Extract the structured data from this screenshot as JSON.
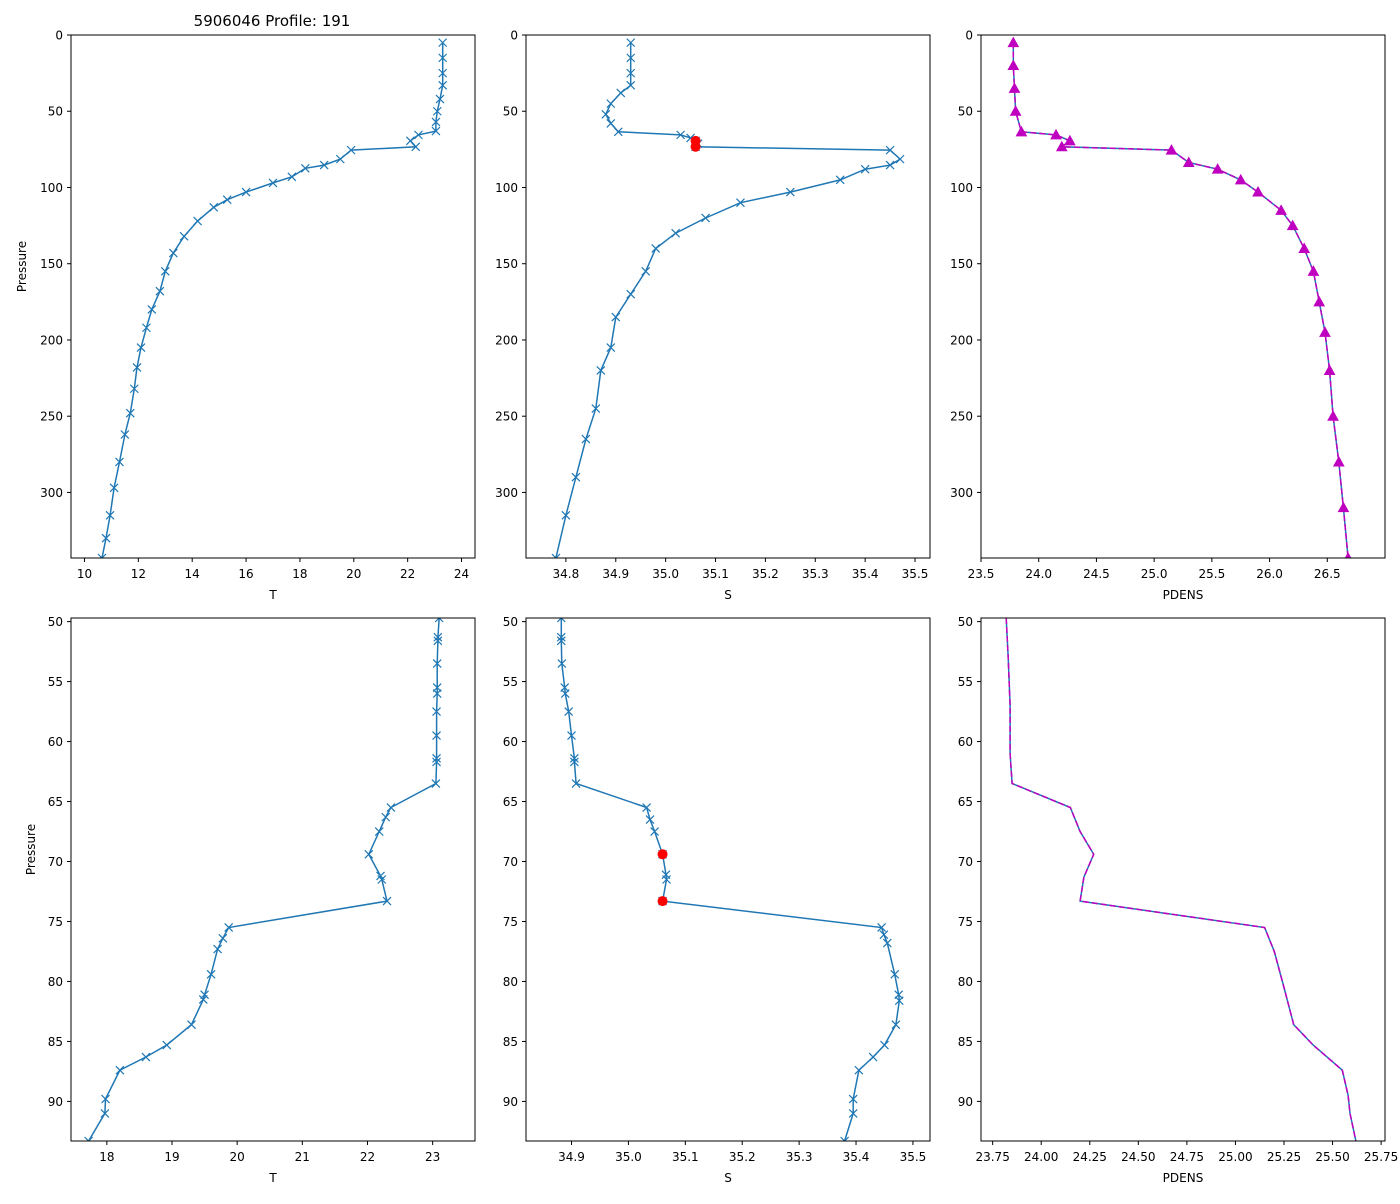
{
  "figure_title": "5906046 Profile: 191",
  "colors": {
    "line": "#1f77b4",
    "flag": "#ff0000",
    "density": "#bf00bf"
  },
  "chart_data": [
    {
      "type": "line",
      "panel": "top-left",
      "title": "5906046 Profile: 191",
      "xlabel": "T",
      "ylabel": "Pressure",
      "xlim": [
        9.5,
        24.5
      ],
      "ylim": [
        343,
        0
      ],
      "y_inverted": true,
      "xticks": [
        10,
        12,
        14,
        16,
        18,
        20,
        22,
        24
      ],
      "yticks": [
        0,
        50,
        100,
        150,
        200,
        250,
        300
      ],
      "marker": "x",
      "series": [
        {
          "name": "T",
          "points": [
            [
              23.3,
              5
            ],
            [
              23.3,
              15
            ],
            [
              23.3,
              25
            ],
            [
              23.3,
              33
            ],
            [
              23.2,
              42
            ],
            [
              23.1,
              50
            ],
            [
              23.05,
              57
            ],
            [
              23.05,
              63
            ],
            [
              22.4,
              65.5
            ],
            [
              22.1,
              69.4
            ],
            [
              22.3,
              73.3
            ],
            [
              19.9,
              75.5
            ],
            [
              19.5,
              81.4
            ],
            [
              18.9,
              85.3
            ],
            [
              18.2,
              87.4
            ],
            [
              17.7,
              93
            ],
            [
              17.0,
              97
            ],
            [
              16.0,
              103
            ],
            [
              15.3,
              108
            ],
            [
              14.8,
              113
            ],
            [
              14.2,
              122
            ],
            [
              13.7,
              132
            ],
            [
              13.3,
              143
            ],
            [
              13.0,
              155
            ],
            [
              12.8,
              168
            ],
            [
              12.5,
              180
            ],
            [
              12.3,
              192
            ],
            [
              12.1,
              205
            ],
            [
              11.95,
              218
            ],
            [
              11.85,
              232
            ],
            [
              11.7,
              248
            ],
            [
              11.5,
              262
            ],
            [
              11.3,
              280
            ],
            [
              11.1,
              297
            ],
            [
              10.95,
              315
            ],
            [
              10.8,
              330
            ],
            [
              10.65,
              343
            ]
          ]
        }
      ]
    },
    {
      "type": "line",
      "panel": "top-center",
      "xlabel": "S",
      "ylabel": "",
      "xlim": [
        34.72,
        35.53
      ],
      "ylim": [
        343,
        0
      ],
      "y_inverted": true,
      "xticks": [
        34.8,
        34.9,
        35.0,
        35.1,
        35.2,
        35.3,
        35.4,
        35.5
      ],
      "yticks": [
        0,
        50,
        100,
        150,
        200,
        250,
        300
      ],
      "marker": "x",
      "series": [
        {
          "name": "S",
          "points": [
            [
              34.93,
              5
            ],
            [
              34.93,
              15
            ],
            [
              34.93,
              25
            ],
            [
              34.93,
              33
            ],
            [
              34.91,
              38
            ],
            [
              34.89,
              45
            ],
            [
              34.88,
              52
            ],
            [
              34.89,
              58
            ],
            [
              34.905,
              63.5
            ],
            [
              35.03,
              65.5
            ],
            [
              35.05,
              67.5
            ],
            [
              35.06,
              69.4
            ],
            [
              35.065,
              71.3
            ],
            [
              35.06,
              73.3
            ],
            [
              35.45,
              75.5
            ],
            [
              35.47,
              81.4
            ],
            [
              35.45,
              85.3
            ],
            [
              35.4,
              88
            ],
            [
              35.35,
              95
            ],
            [
              35.25,
              103
            ],
            [
              35.15,
              110
            ],
            [
              35.08,
              120
            ],
            [
              35.02,
              130
            ],
            [
              34.98,
              140
            ],
            [
              34.96,
              155
            ],
            [
              34.93,
              170
            ],
            [
              34.9,
              185
            ],
            [
              34.89,
              205
            ],
            [
              34.87,
              220
            ],
            [
              34.86,
              245
            ],
            [
              34.84,
              265
            ],
            [
              34.82,
              290
            ],
            [
              34.8,
              315
            ],
            [
              34.78,
              343
            ]
          ]
        }
      ],
      "flagged_points": [
        [
          35.06,
          69.4
        ],
        [
          35.06,
          73.3
        ]
      ]
    },
    {
      "type": "line",
      "panel": "top-right",
      "xlabel": "PDENS",
      "ylabel": "",
      "xlim": [
        23.5,
        27.0
      ],
      "ylim": [
        343,
        0
      ],
      "y_inverted": true,
      "xticks": [
        23.5,
        24.0,
        24.5,
        25.0,
        25.5,
        26.0,
        26.5
      ],
      "yticks": [
        0,
        50,
        100,
        150,
        200,
        250,
        300
      ],
      "marker": "^",
      "series": [
        {
          "name": "PDENS",
          "points": [
            [
              23.78,
              5
            ],
            [
              23.78,
              20
            ],
            [
              23.79,
              35
            ],
            [
              23.8,
              50
            ],
            [
              23.85,
              63.5
            ],
            [
              24.15,
              65.5
            ],
            [
              24.27,
              69.4
            ],
            [
              24.2,
              73.3
            ],
            [
              25.15,
              75.5
            ],
            [
              25.3,
              83.6
            ],
            [
              25.55,
              88
            ],
            [
              25.75,
              95
            ],
            [
              25.9,
              103
            ],
            [
              26.1,
              115
            ],
            [
              26.2,
              125
            ],
            [
              26.3,
              140
            ],
            [
              26.38,
              155
            ],
            [
              26.43,
              175
            ],
            [
              26.48,
              195
            ],
            [
              26.52,
              220
            ],
            [
              26.55,
              250
            ],
            [
              26.6,
              280
            ],
            [
              26.64,
              310
            ],
            [
              26.68,
              343
            ]
          ]
        }
      ]
    },
    {
      "type": "line",
      "panel": "bottom-left",
      "xlabel": "T",
      "ylabel": "Pressure",
      "xlim": [
        17.45,
        23.65
      ],
      "ylim": [
        93.3,
        49.7
      ],
      "y_inverted": true,
      "xticks": [
        18,
        19,
        20,
        21,
        22,
        23
      ],
      "yticks": [
        50,
        55,
        60,
        65,
        70,
        75,
        80,
        85,
        90
      ],
      "marker": "x",
      "series": [
        {
          "name": "T",
          "points": [
            [
              23.1,
              49.7
            ],
            [
              23.08,
              51.3
            ],
            [
              23.08,
              51.6
            ],
            [
              23.07,
              53.5
            ],
            [
              23.07,
              55.5
            ],
            [
              23.07,
              56.0
            ],
            [
              23.06,
              57.5
            ],
            [
              23.06,
              59.5
            ],
            [
              23.06,
              61.4
            ],
            [
              23.06,
              61.7
            ],
            [
              23.05,
              63.5
            ],
            [
              22.36,
              65.5
            ],
            [
              22.28,
              66.3
            ],
            [
              22.18,
              67.5
            ],
            [
              22.02,
              69.4
            ],
            [
              22.2,
              71.2
            ],
            [
              22.22,
              71.5
            ],
            [
              22.3,
              73.3
            ],
            [
              19.87,
              75.5
            ],
            [
              19.78,
              76.4
            ],
            [
              19.7,
              77.3
            ],
            [
              19.6,
              79.4
            ],
            [
              19.5,
              81.1
            ],
            [
              19.48,
              81.5
            ],
            [
              19.3,
              83.6
            ],
            [
              18.92,
              85.3
            ],
            [
              18.6,
              86.3
            ],
            [
              18.2,
              87.4
            ],
            [
              17.98,
              89.8
            ],
            [
              17.97,
              91.0
            ],
            [
              17.72,
              93.3
            ]
          ]
        }
      ]
    },
    {
      "type": "line",
      "panel": "bottom-center",
      "xlabel": "S",
      "ylabel": "",
      "xlim": [
        34.82,
        35.53
      ],
      "ylim": [
        93.3,
        49.7
      ],
      "y_inverted": true,
      "xticks": [
        34.9,
        35.0,
        35.1,
        35.2,
        35.3,
        35.4,
        35.5
      ],
      "yticks": [
        50,
        55,
        60,
        65,
        70,
        75,
        80,
        85,
        90
      ],
      "marker": "x",
      "series": [
        {
          "name": "S",
          "points": [
            [
              34.882,
              49.7
            ],
            [
              34.882,
              51.3
            ],
            [
              34.882,
              51.6
            ],
            [
              34.883,
              53.5
            ],
            [
              34.888,
              55.5
            ],
            [
              34.889,
              56.0
            ],
            [
              34.895,
              57.5
            ],
            [
              34.9,
              59.5
            ],
            [
              34.905,
              61.4
            ],
            [
              34.905,
              61.7
            ],
            [
              34.908,
              63.5
            ],
            [
              35.032,
              65.5
            ],
            [
              35.038,
              66.5
            ],
            [
              35.046,
              67.5
            ],
            [
              35.06,
              69.4
            ],
            [
              35.066,
              71.1
            ],
            [
              35.067,
              71.5
            ],
            [
              35.06,
              73.3
            ],
            [
              35.445,
              75.5
            ],
            [
              35.449,
              76.1
            ],
            [
              35.455,
              76.8
            ],
            [
              35.468,
              79.4
            ],
            [
              35.475,
              81.1
            ],
            [
              35.476,
              81.6
            ],
            [
              35.47,
              83.6
            ],
            [
              35.45,
              85.3
            ],
            [
              35.43,
              86.3
            ],
            [
              35.405,
              87.4
            ],
            [
              35.395,
              89.8
            ],
            [
              35.395,
              91.0
            ],
            [
              35.38,
              93.3
            ]
          ]
        }
      ],
      "flagged_points": [
        [
          35.06,
          69.4
        ],
        [
          35.06,
          73.3
        ]
      ]
    },
    {
      "type": "line",
      "panel": "bottom-right",
      "xlabel": "PDENS",
      "ylabel": "",
      "xlim": [
        23.69,
        25.77
      ],
      "ylim": [
        93.3,
        49.7
      ],
      "y_inverted": true,
      "xticks": [
        23.75,
        24.0,
        24.25,
        24.5,
        24.75,
        25.0,
        25.25,
        25.5,
        25.75
      ],
      "yticks": [
        50,
        55,
        60,
        65,
        70,
        75,
        80,
        85,
        90
      ],
      "marker": "none",
      "style": "solid line with magenta dashed overlay",
      "series": [
        {
          "name": "PDENS",
          "points": [
            [
              23.82,
              49.7
            ],
            [
              23.83,
              53.0
            ],
            [
              23.84,
              57.0
            ],
            [
              23.84,
              61.0
            ],
            [
              23.85,
              63.5
            ],
            [
              24.15,
              65.5
            ],
            [
              24.2,
              67.5
            ],
            [
              24.27,
              69.4
            ],
            [
              24.22,
              71.3
            ],
            [
              24.2,
              73.3
            ],
            [
              25.15,
              75.5
            ],
            [
              25.2,
              77.5
            ],
            [
              25.25,
              80.5
            ],
            [
              25.3,
              83.6
            ],
            [
              25.4,
              85.3
            ],
            [
              25.55,
              87.4
            ],
            [
              25.58,
              89.5
            ],
            [
              25.59,
              91.0
            ],
            [
              25.62,
              93.3
            ]
          ]
        }
      ]
    }
  ]
}
